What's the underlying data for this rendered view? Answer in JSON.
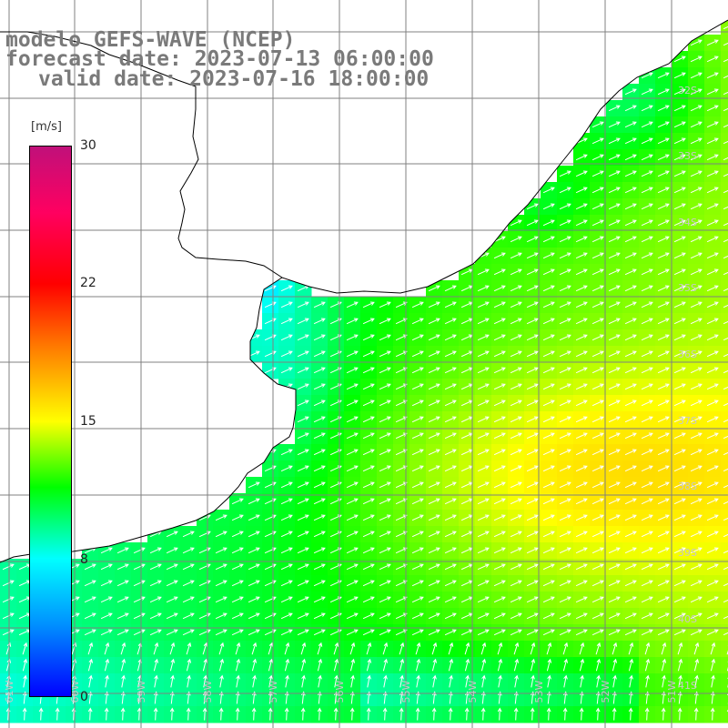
{
  "header": {
    "line1": "modelo GEFS-WAVE (NCEP)",
    "line2": "forecast date: 2023-07-13 06:00:00",
    "line3": "valid date: 2023-07-16 18:00:00"
  },
  "colorbar": {
    "unit": "[m/s]",
    "ticks": [
      "30",
      "22",
      "15",
      "8",
      "0"
    ],
    "colors": [
      "#0000ff",
      "#0090ff",
      "#00ffff",
      "#00ff00",
      "#ffff00",
      "#ff8000",
      "#ff0000",
      "#ff0060",
      "#c0107a"
    ]
  },
  "map": {
    "lat_labels": [
      "32S",
      "33S",
      "34S",
      "35S",
      "36S",
      "37S",
      "38S",
      "39S",
      "40S",
      "41S"
    ],
    "lon_labels": [
      "61W",
      "60W",
      "59W",
      "58W",
      "57W",
      "56W",
      "55W",
      "54W",
      "53W",
      "52W",
      "51W"
    ],
    "land_color": "#ffffff",
    "grid_color": "#808080",
    "arrow_color": "#ffffff"
  }
}
